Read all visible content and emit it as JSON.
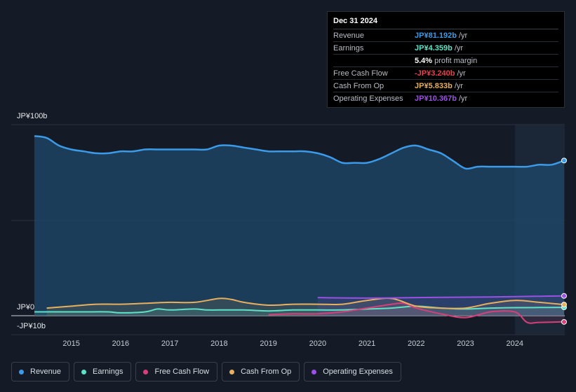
{
  "tooltip": {
    "date": "Dec 31 2024",
    "rows": [
      {
        "label": "Revenue",
        "value": "JP¥81.192b",
        "unit": "/yr",
        "color": "#3b9be8"
      },
      {
        "label": "Earnings",
        "value": "JP¥4.359b",
        "unit": "/yr",
        "color": "#5ee2c6"
      },
      {
        "label": "",
        "value": "5.4%",
        "unit": "profit margin",
        "color": "#ffffff"
      },
      {
        "label": "Free Cash Flow",
        "value": "-JP¥3.240b",
        "unit": "/yr",
        "color": "#e8424a"
      },
      {
        "label": "Cash From Op",
        "value": "JP¥5.833b",
        "unit": "/yr",
        "color": "#e8b05e"
      },
      {
        "label": "Operating Expenses",
        "value": "JP¥10.367b",
        "unit": "/yr",
        "color": "#9b50e6"
      }
    ]
  },
  "chart_data": {
    "type": "line",
    "y_labels": {
      "top": "JP¥100b",
      "zero": "JP¥0",
      "bottom": "-JP¥10b"
    },
    "ylim": [
      -10,
      100
    ],
    "xlim": [
      2014.25,
      2025.0
    ],
    "x_ticks": [
      "2015",
      "2016",
      "2017",
      "2018",
      "2019",
      "2020",
      "2021",
      "2022",
      "2023",
      "2024"
    ],
    "forecast_start": 2024.0,
    "series": [
      {
        "name": "Revenue",
        "color": "#3b9be8",
        "fill": true,
        "x": [
          2014.25,
          2014.5,
          2014.75,
          2015.0,
          2015.25,
          2015.5,
          2015.75,
          2016.0,
          2016.25,
          2016.5,
          2016.75,
          2017.0,
          2017.25,
          2017.5,
          2017.75,
          2018.0,
          2018.25,
          2018.5,
          2018.75,
          2019.0,
          2019.25,
          2019.5,
          2019.75,
          2020.0,
          2020.25,
          2020.5,
          2020.75,
          2021.0,
          2021.25,
          2021.5,
          2021.75,
          2022.0,
          2022.25,
          2022.5,
          2022.75,
          2023.0,
          2023.25,
          2023.5,
          2023.75,
          2024.0,
          2024.25,
          2024.5,
          2024.75,
          2025.0
        ],
        "values": [
          94,
          93,
          89,
          87,
          86,
          85,
          85,
          86,
          86,
          87,
          87,
          87,
          87,
          87,
          87,
          89,
          89,
          88,
          87,
          86,
          86,
          86,
          86,
          85,
          83,
          80,
          80,
          80,
          82,
          85,
          88,
          89,
          87,
          85,
          81,
          77,
          78,
          78,
          78,
          78,
          78,
          79,
          79,
          81.2
        ]
      },
      {
        "name": "Earnings",
        "color": "#5ee2c6",
        "fill": false,
        "x": [
          2014.25,
          2014.75,
          2015.25,
          2015.75,
          2016.0,
          2016.5,
          2016.75,
          2017.0,
          2017.5,
          2017.75,
          2018.0,
          2018.5,
          2019.0,
          2019.5,
          2020.0,
          2020.5,
          2021.0,
          2021.5,
          2022.0,
          2022.5,
          2023.0,
          2023.5,
          2024.0,
          2024.5,
          2025.0
        ],
        "values": [
          2,
          2,
          2,
          2,
          1.5,
          2,
          3.5,
          3,
          3.5,
          3,
          3,
          3,
          2.5,
          3,
          3,
          3,
          3.5,
          4,
          5,
          4,
          3.5,
          4,
          4.2,
          4.3,
          4.36
        ]
      },
      {
        "name": "Free Cash Flow",
        "color": "#d6407a",
        "fill": false,
        "x": [
          2019.0,
          2019.5,
          2020.0,
          2020.5,
          2021.0,
          2021.25,
          2021.5,
          2021.75,
          2022.0,
          2022.5,
          2023.0,
          2023.5,
          2024.0,
          2024.25,
          2024.5,
          2025.0
        ],
        "values": [
          0.5,
          1,
          1,
          2,
          4,
          5,
          6,
          6.5,
          4,
          1,
          -1,
          2,
          2,
          -3.5,
          -3.5,
          -3.24
        ]
      },
      {
        "name": "Cash From Op",
        "color": "#e8b05e",
        "fill": false,
        "x": [
          2014.5,
          2015.0,
          2015.5,
          2016.0,
          2016.5,
          2017.0,
          2017.5,
          2018.0,
          2018.25,
          2018.5,
          2019.0,
          2019.5,
          2020.0,
          2020.5,
          2021.0,
          2021.5,
          2022.0,
          2022.5,
          2023.0,
          2023.5,
          2024.0,
          2024.5,
          2025.0
        ],
        "values": [
          4,
          5,
          6,
          6,
          6.5,
          7,
          7,
          9,
          8.5,
          7,
          5.5,
          6,
          6,
          6,
          8,
          9,
          5,
          4,
          4,
          6.5,
          8,
          7,
          5.83
        ]
      },
      {
        "name": "Operating Expenses",
        "color": "#9b50e6",
        "fill": false,
        "x": [
          2020.0,
          2020.5,
          2021.0,
          2021.5,
          2022.0,
          2022.5,
          2023.0,
          2023.5,
          2024.0,
          2024.5,
          2025.0
        ],
        "values": [
          9.5,
          9.3,
          9.2,
          9.3,
          9.5,
          9.6,
          9.7,
          9.8,
          10,
          10.2,
          10.37
        ]
      }
    ]
  },
  "legend": [
    {
      "label": "Revenue",
      "color": "#3b9be8"
    },
    {
      "label": "Earnings",
      "color": "#5ee2c6"
    },
    {
      "label": "Free Cash Flow",
      "color": "#d6407a"
    },
    {
      "label": "Cash From Op",
      "color": "#e8b05e"
    },
    {
      "label": "Operating Expenses",
      "color": "#9b50e6"
    }
  ]
}
